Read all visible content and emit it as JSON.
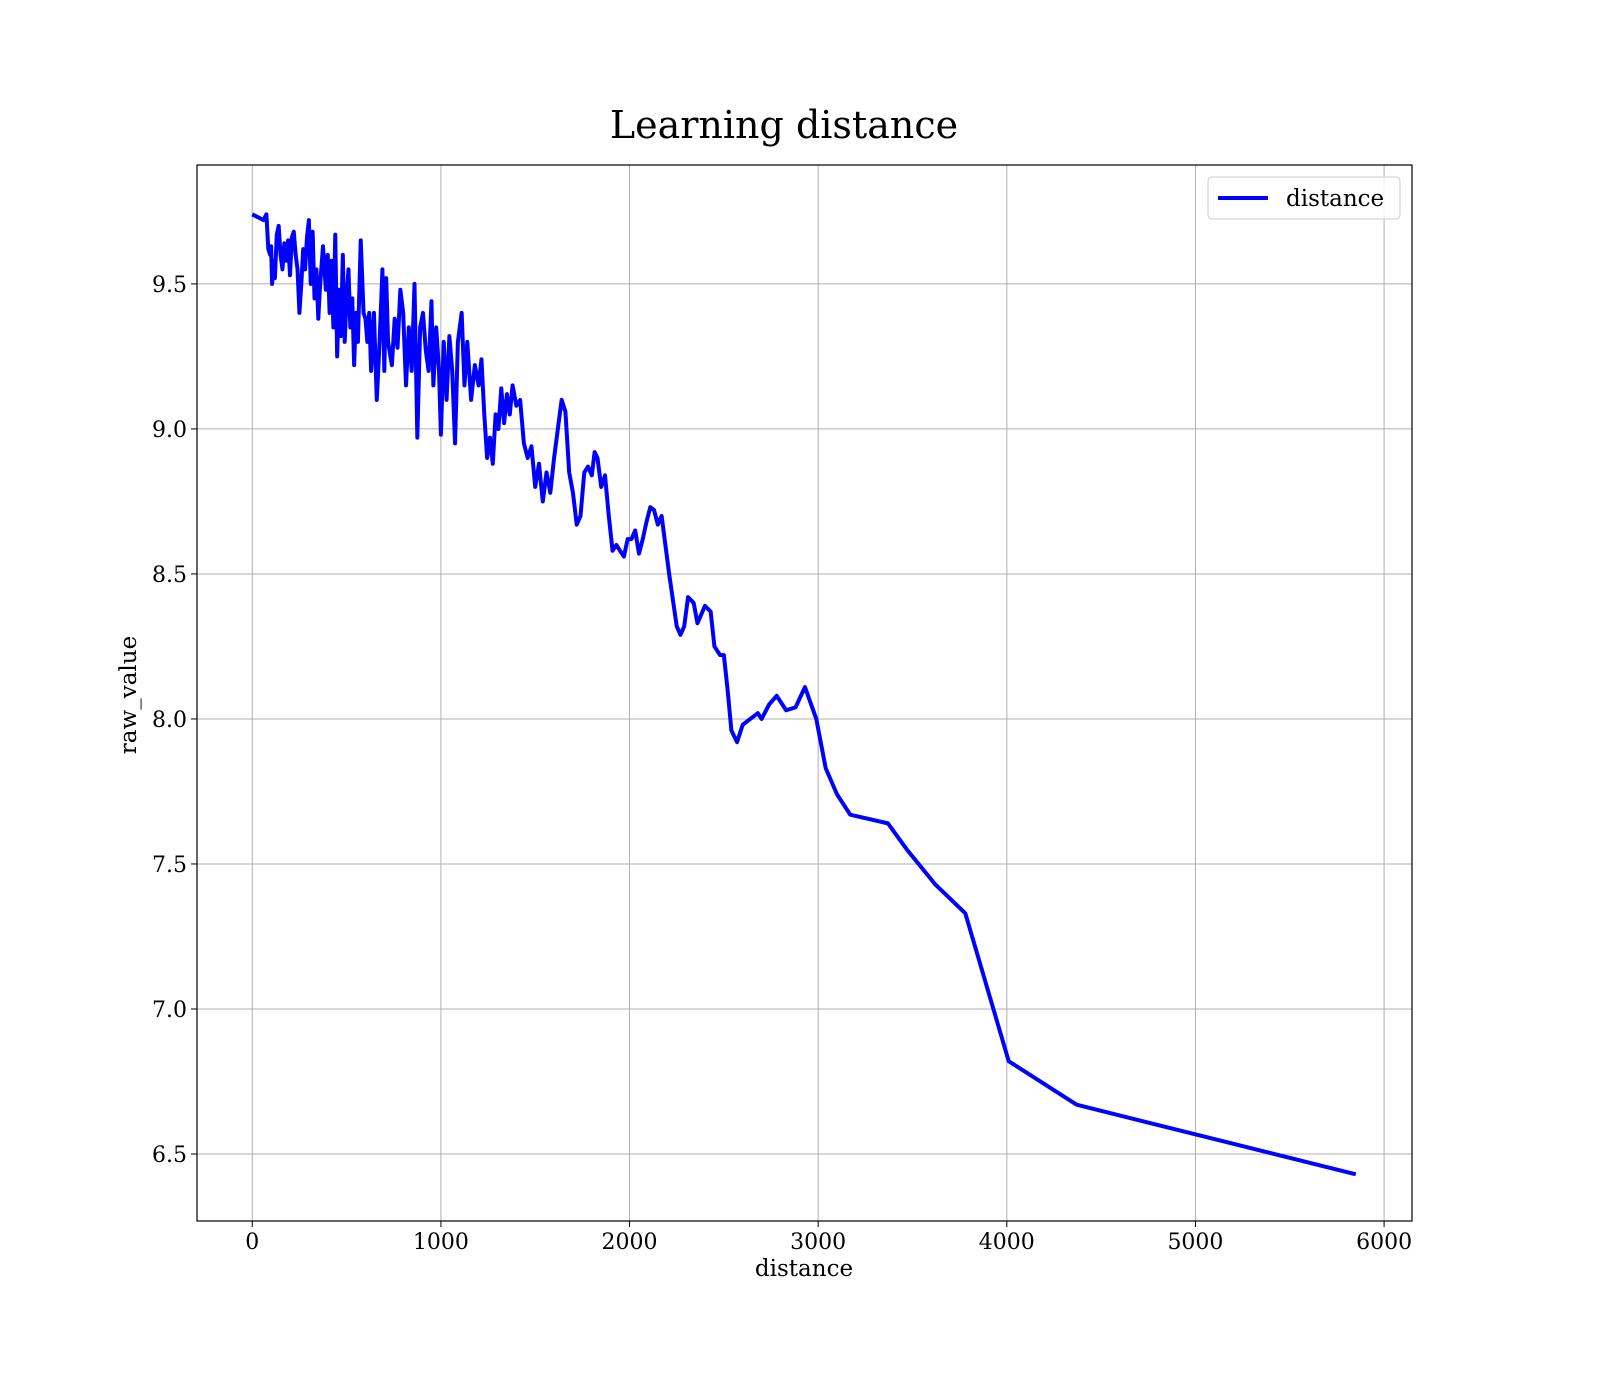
{
  "chart_data": {
    "type": "line",
    "title": "Learning distance",
    "x_label": "distance",
    "y_label": "raw_value",
    "xlim": [
      -293,
      6148
    ],
    "ylim": [
      6.269,
      9.91
    ],
    "xticks": [
      0,
      1000,
      2000,
      3000,
      4000,
      5000,
      6000
    ],
    "yticks": [
      6.5,
      {
        "value": 7,
        "label": "7.0"
      },
      7.5,
      {
        "value": 8,
        "label": "8.0"
      },
      8.5,
      {
        "value": 9,
        "label": "9.0"
      },
      9.5
    ],
    "grid": true,
    "legend": "upper right",
    "x": [
      0,
      30,
      60,
      75,
      85,
      95,
      100,
      105,
      115,
      120,
      130,
      140,
      150,
      160,
      170,
      180,
      190,
      200,
      210,
      220,
      230,
      240,
      250,
      260,
      270,
      280,
      290,
      300,
      310,
      320,
      330,
      340,
      350,
      360,
      375,
      390,
      400,
      410,
      420,
      430,
      440,
      450,
      460,
      470,
      480,
      490,
      500,
      510,
      520,
      530,
      540,
      550,
      560,
      575,
      590,
      600,
      610,
      620,
      630,
      645,
      660,
      675,
      690,
      700,
      710,
      720,
      740,
      755,
      770,
      785,
      800,
      815,
      830,
      845,
      860,
      875,
      890,
      905,
      920,
      935,
      950,
      960,
      975,
      990,
      1000,
      1015,
      1030,
      1045,
      1060,
      1075,
      1090,
      1110,
      1125,
      1140,
      1160,
      1180,
      1200,
      1215,
      1230,
      1245,
      1260,
      1275,
      1290,
      1305,
      1320,
      1335,
      1350,
      1365,
      1380,
      1400,
      1420,
      1440,
      1460,
      1480,
      1500,
      1520,
      1540,
      1560,
      1580,
      1600,
      1620,
      1640,
      1660,
      1680,
      1700,
      1720,
      1740,
      1760,
      1780,
      1800,
      1815,
      1830,
      1850,
      1870,
      1890,
      1910,
      1930,
      1950,
      1970,
      1990,
      2010,
      2030,
      2050,
      2070,
      2090,
      2110,
      2130,
      2150,
      2170,
      2210,
      2250,
      2270,
      2290,
      2310,
      2340,
      2360,
      2400,
      2430,
      2450,
      2480,
      2500,
      2520,
      2540,
      2570,
      2600,
      2640,
      2680,
      2700,
      2740,
      2780,
      2830,
      2880,
      2930,
      2990,
      3040,
      3100,
      3170,
      3370,
      3470,
      3620,
      3780,
      4010,
      4370,
      5850
    ],
    "series": [
      {
        "name": "distance",
        "color": "#0000ff",
        "values": [
          9.74,
          9.73,
          9.72,
          9.74,
          9.62,
          9.6,
          9.63,
          9.5,
          9.58,
          9.52,
          9.67,
          9.7,
          9.6,
          9.55,
          9.64,
          9.58,
          9.65,
          9.53,
          9.66,
          9.68,
          9.6,
          9.55,
          9.4,
          9.5,
          9.62,
          9.55,
          9.66,
          9.72,
          9.5,
          9.68,
          9.45,
          9.55,
          9.38,
          9.5,
          9.63,
          9.48,
          9.6,
          9.4,
          9.58,
          9.35,
          9.67,
          9.25,
          9.48,
          9.32,
          9.6,
          9.3,
          9.45,
          9.55,
          9.35,
          9.45,
          9.22,
          9.4,
          9.3,
          9.65,
          9.4,
          9.38,
          9.3,
          9.4,
          9.2,
          9.4,
          9.1,
          9.3,
          9.55,
          9.2,
          9.52,
          9.3,
          9.22,
          9.38,
          9.28,
          9.48,
          9.4,
          9.15,
          9.35,
          9.2,
          9.5,
          8.97,
          9.35,
          9.4,
          9.27,
          9.2,
          9.44,
          9.15,
          9.35,
          9.2,
          8.98,
          9.3,
          9.1,
          9.32,
          9.2,
          8.95,
          9.3,
          9.4,
          9.15,
          9.3,
          9.1,
          9.22,
          9.15,
          9.24,
          9.05,
          8.9,
          8.97,
          8.88,
          9.05,
          9.0,
          9.14,
          9.02,
          9.12,
          9.05,
          9.15,
          9.08,
          9.1,
          8.95,
          8.9,
          8.94,
          8.8,
          8.88,
          8.75,
          8.85,
          8.78,
          8.9,
          9.0,
          9.1,
          9.06,
          8.85,
          8.78,
          8.67,
          8.7,
          8.85,
          8.87,
          8.84,
          8.92,
          8.9,
          8.8,
          8.84,
          8.7,
          8.58,
          8.6,
          8.58,
          8.56,
          8.62,
          8.62,
          8.65,
          8.57,
          8.62,
          8.68,
          8.73,
          8.72,
          8.67,
          8.7,
          8.5,
          8.32,
          8.29,
          8.32,
          8.42,
          8.4,
          8.33,
          8.39,
          8.37,
          8.25,
          8.22,
          8.22,
          8.1,
          7.96,
          7.92,
          7.98,
          8.0,
          8.02,
          8.0,
          8.05,
          8.08,
          8.03,
          8.04,
          8.11,
          8.0,
          7.83,
          7.74,
          7.67,
          7.64,
          7.55,
          7.43,
          7.33,
          6.82,
          6.67,
          6.43
        ]
      }
    ]
  }
}
